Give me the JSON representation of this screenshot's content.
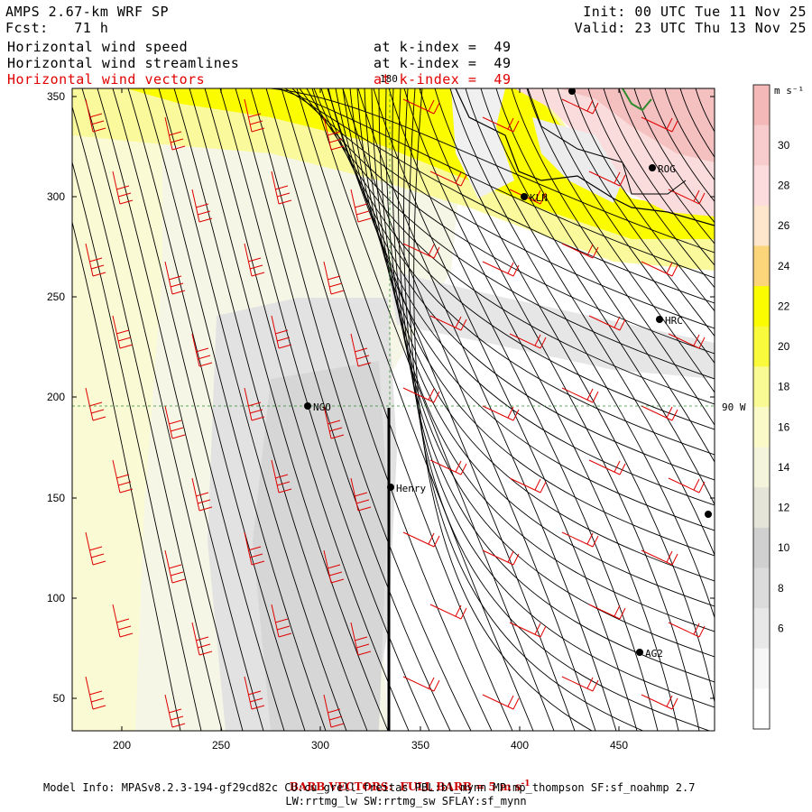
{
  "header": {
    "title": "AMPS 2.67-km WRF SP",
    "forecast": "Fcst:   71 h",
    "init": "Init: 00 UTC Tue 11 Nov 25",
    "valid": "Valid: 23 UTC Thu 13 Nov 25",
    "fields": [
      {
        "name": "Horizontal wind speed",
        "level": "at k-index =  49",
        "color": "#000000"
      },
      {
        "name": "Horizontal wind streamlines",
        "level": "at k-index =  49",
        "color": "#000000"
      },
      {
        "name": "Horizontal wind vectors",
        "level": "at k-index =  49",
        "color": "#e00000"
      }
    ]
  },
  "map": {
    "x_ticks": [
      "200",
      "250",
      "300",
      "350",
      "400",
      "450"
    ],
    "y_ticks": [
      "50",
      "100",
      "150",
      "200",
      "250",
      "300",
      "350"
    ],
    "meridian_label": "180",
    "parallel_label": "90 W",
    "stations": [
      {
        "id": "ROG"
      },
      {
        "id": "KLN"
      },
      {
        "id": "HRC"
      },
      {
        "id": "NGO"
      },
      {
        "id": "Henry"
      },
      {
        "id": "AG2"
      },
      {
        "id": ""
      },
      {
        "id": ""
      }
    ]
  },
  "colorbar": {
    "unit": "m s⁻¹",
    "labels": [
      "30",
      "28",
      "26",
      "24",
      "22",
      "20",
      "18",
      "16",
      "14",
      "12",
      "10",
      "8",
      "6"
    ],
    "colors": [
      "#f4b8b8",
      "#f8cccc",
      "#fcdcdc",
      "#fde6cc",
      "#fcd47a",
      "#fcfc00",
      "#fafa3c",
      "#fafa94",
      "#fafac8",
      "#f4f4dc",
      "#e4e4d8",
      "#d0d0d0",
      "#dcdcdc",
      "#e8e8e8",
      "#f6f6f6",
      "#ffffff"
    ]
  },
  "footer": {
    "barb_note": "BARB VECTORS:  FULL BARB = 5 m s",
    "barb_sup": "-1",
    "model_info": "Model Info: MPASv8.2.3-194-gf29cd82c CU:cu_grell_freitas PBL:bl_mynn MP:mp_thompson SF:sf_noahmp 2.7",
    "physics": "LW:rrtmg_lw SW:rrtmg_sw SFLAY:sf_mynn"
  }
}
